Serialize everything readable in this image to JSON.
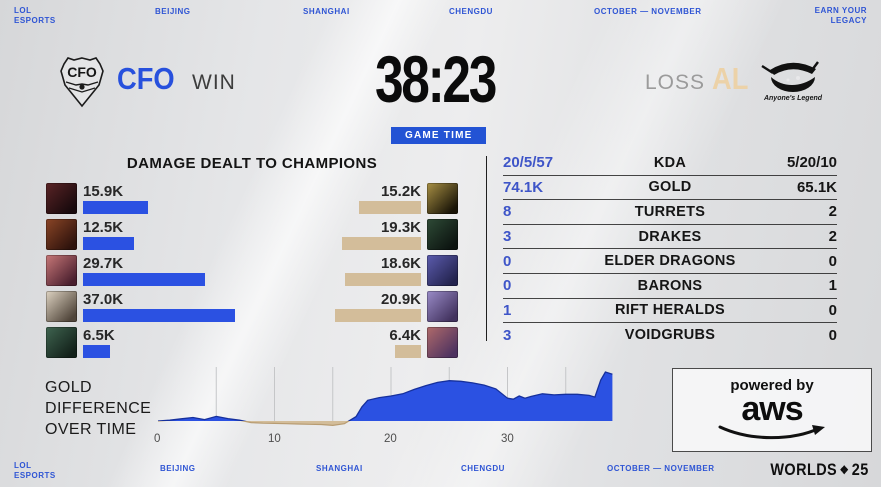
{
  "colors": {
    "accent_blue": "#2750dd",
    "bar_blue": "#2b51e2",
    "bar_tan": "#d3bd9a",
    "al_tan": "#ecd2a8",
    "badge_blue": "#2353d4",
    "table_value_blue": "#3e55c8"
  },
  "top_bar": {
    "brand_line1": "LOL",
    "brand_line2": "ESPORTS",
    "city1": "BEIJING",
    "city2": "SHANGHAI",
    "city3": "CHENGDU",
    "dates": "OCTOBER — NOVEMBER",
    "tagline_line1": "EARN YOUR",
    "tagline_line2": "LEGACY"
  },
  "header": {
    "left_team": "CFO",
    "left_result": "WIN",
    "game_time": "38:23",
    "game_time_label": "GAME TIME",
    "right_result": "LOSS",
    "right_team": "AL",
    "right_team_full": "Anyone's Legend"
  },
  "damage": {
    "title": "DAMAGE DEALT TO CHAMPIONS",
    "scale_max_k": 37.0,
    "left": [
      {
        "value_label": "15.9K",
        "value_k": 15.9,
        "icon_colors": [
          "#5a2426",
          "#17090c"
        ]
      },
      {
        "value_label": "12.5K",
        "value_k": 12.5,
        "icon_colors": [
          "#8a4526",
          "#2e120c"
        ]
      },
      {
        "value_label": "29.7K",
        "value_k": 29.7,
        "icon_colors": [
          "#c87878",
          "#4a1f2e"
        ]
      },
      {
        "value_label": "37.0K",
        "value_k": 37.0,
        "icon_colors": [
          "#ded3c2",
          "#50453a"
        ]
      },
      {
        "value_label": "6.5K",
        "value_k": 6.5,
        "icon_colors": [
          "#3f6450",
          "#122019"
        ]
      }
    ],
    "right": [
      {
        "value_label": "15.2K",
        "value_k": 15.2,
        "icon_colors": [
          "#a89044",
          "#191407"
        ]
      },
      {
        "value_label": "19.3K",
        "value_k": 19.3,
        "icon_colors": [
          "#2e4a36",
          "#0c1410"
        ]
      },
      {
        "value_label": "18.6K",
        "value_k": 18.6,
        "icon_colors": [
          "#5c5cae",
          "#23234e"
        ]
      },
      {
        "value_label": "20.9K",
        "value_k": 20.9,
        "icon_colors": [
          "#9a8cc8",
          "#42325e"
        ]
      },
      {
        "value_label": "6.4K",
        "value_k": 6.4,
        "icon_colors": [
          "#b06a6a",
          "#4e3260"
        ]
      }
    ]
  },
  "stats": {
    "rows": [
      {
        "left": "20/5/57",
        "label": "KDA",
        "right": "5/20/10"
      },
      {
        "left": "74.1K",
        "label": "GOLD",
        "right": "65.1K"
      },
      {
        "left": "8",
        "label": "TURRETS",
        "right": "2"
      },
      {
        "left": "3",
        "label": "DRAKES",
        "right": "2"
      },
      {
        "left": "0",
        "label": "ELDER DRAGONS",
        "right": "0"
      },
      {
        "left": "0",
        "label": "BARONS",
        "right": "1"
      },
      {
        "left": "1",
        "label": "RIFT HERALDS",
        "right": "0"
      },
      {
        "left": "3",
        "label": "VOIDGRUBS",
        "right": "0"
      }
    ]
  },
  "gold_chart": {
    "type": "area",
    "title_line1": "GOLD",
    "title_line2": "DIFFERENCE",
    "title_line3": "OVER TIME",
    "xlabel_unit": "minutes",
    "xticks": [
      "0",
      "10",
      "20",
      "30"
    ],
    "positive_team": "CFO",
    "negative_team": "AL",
    "x_minutes": [
      0,
      1,
      2,
      3,
      4,
      5,
      6,
      7,
      8,
      9,
      10,
      11,
      12,
      13,
      14,
      15,
      16,
      17,
      17.5,
      18,
      19,
      20,
      21,
      22,
      23,
      24,
      25,
      26,
      27,
      28,
      29,
      30,
      30.5,
      31,
      31.5,
      32,
      33,
      34,
      35,
      36,
      37,
      37.5,
      38,
      38.4,
      39
    ],
    "diff_k": [
      0,
      0.15,
      0.4,
      0.65,
      0.25,
      0.85,
      0.45,
      0.15,
      -0.3,
      -0.4,
      -0.45,
      -0.5,
      -0.55,
      -0.6,
      -0.65,
      -0.8,
      -0.5,
      0.8,
      2.6,
      3.8,
      4.3,
      4.6,
      5.0,
      5.8,
      6.5,
      7.1,
      7.4,
      7.3,
      7.0,
      6.6,
      5.9,
      4.2,
      4.0,
      4.6,
      4.2,
      4.5,
      5.0,
      4.8,
      4.9,
      4.9,
      4.7,
      4.4,
      7.5,
      9.0,
      8.6
    ]
  },
  "aws": {
    "line1": "powered by",
    "line2": "aws"
  },
  "bottom_bar": {
    "brand_line1": "LOL",
    "brand_line2": "ESPORTS",
    "city1": "BEIJING",
    "city2": "SHANGHAI",
    "city3": "CHENGDU",
    "dates": "OCTOBER — NOVEMBER",
    "worlds": "WORLDS",
    "worlds_year": "25"
  }
}
